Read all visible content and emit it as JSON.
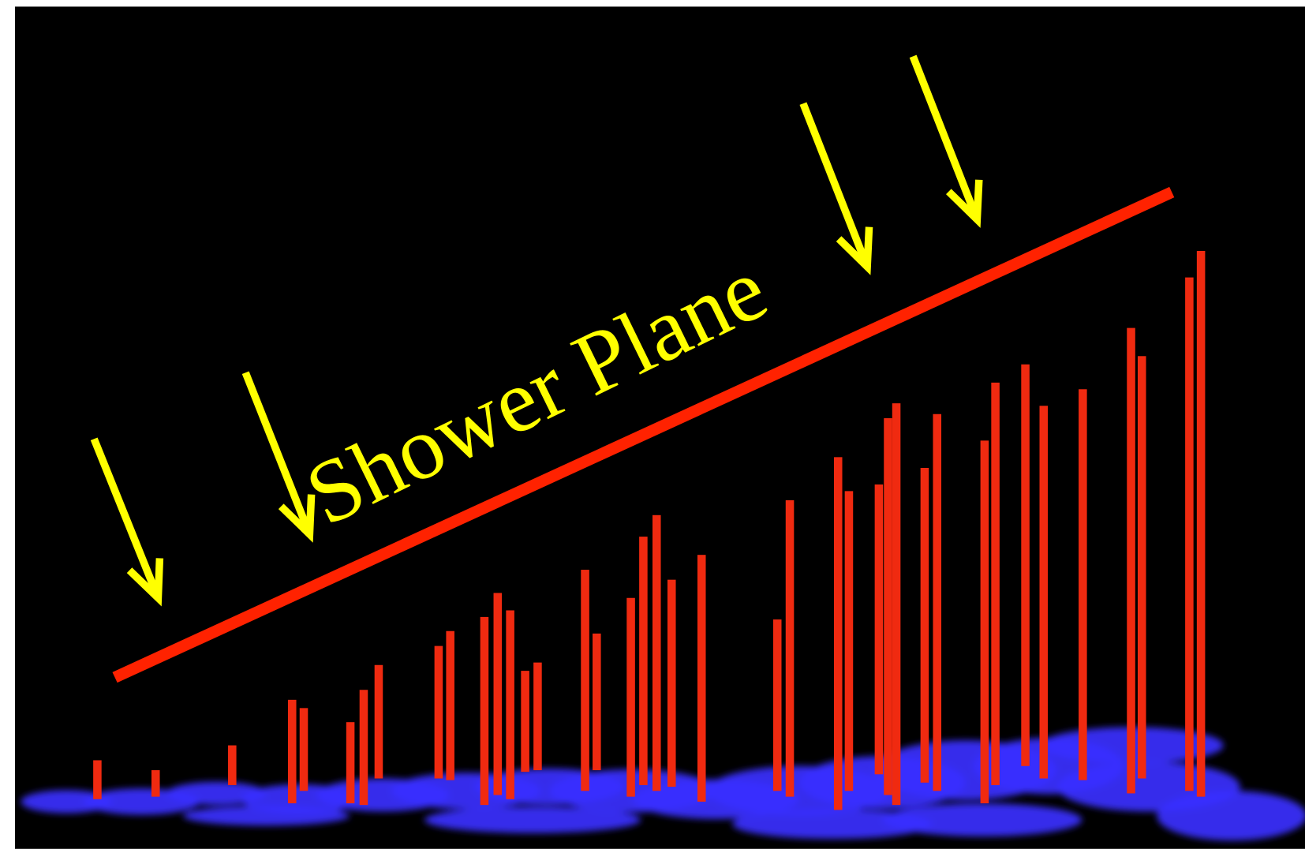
{
  "label": "Shower Plane"
}
